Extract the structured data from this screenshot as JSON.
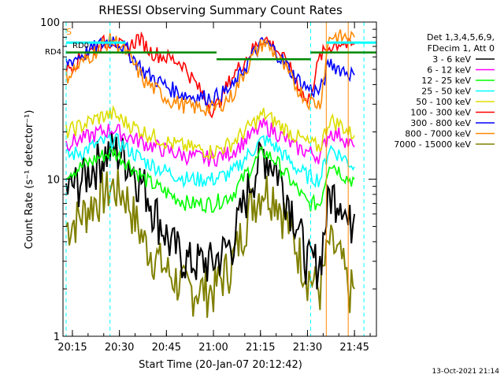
{
  "chart_data": {
    "type": "line",
    "title": "RHESSI Observing Summary Count Rates",
    "xlabel": "Start Time (20-Jan-07 20:12:42)",
    "ylabel": "Count Rate (s⁻¹ detector⁻¹)",
    "y_scale": "log",
    "ylim": [
      1,
      100
    ],
    "xlim": [
      "20:12",
      "21:52"
    ],
    "x_ticks": [
      "20:15",
      "20:30",
      "20:45",
      "21:00",
      "21:15",
      "21:30",
      "21:45"
    ],
    "y_ticks": [
      "1",
      "10",
      "100"
    ],
    "legend_header": [
      "Det 1,3,4,5,6,9,",
      "FDecim 1, Att 0"
    ],
    "legend_position": "right",
    "timestamp": "13-Oct-2021 21:14",
    "markers": [
      "S",
      "RD0",
      "RD4"
    ],
    "series": [
      {
        "name": "3 - 6 keV",
        "color": "#000000",
        "x": [
          "20:13",
          "20:18",
          "20:24",
          "20:28",
          "20:32",
          "20:38",
          "20:46",
          "20:52",
          "21:00",
          "21:06",
          "21:12",
          "21:16",
          "21:20",
          "21:26",
          "21:30",
          "21:34",
          "21:37",
          "21:41",
          "21:43",
          "21:45"
        ],
        "y": [
          8.5,
          10,
          14,
          15.5,
          14,
          9,
          4,
          3,
          3,
          4,
          10,
          15,
          12,
          6,
          3,
          3,
          8,
          8,
          5,
          6
        ]
      },
      {
        "name": "6 - 12 keV",
        "color": "#ff00ff",
        "x": [
          "20:13",
          "20:18",
          "20:24",
          "20:28",
          "20:32",
          "20:38",
          "20:46",
          "20:52",
          "21:00",
          "21:06",
          "21:12",
          "21:16",
          "21:20",
          "21:26",
          "21:30",
          "21:34",
          "21:37",
          "21:41",
          "21:43",
          "21:45"
        ],
        "y": [
          17,
          18,
          20,
          21,
          19,
          17,
          15,
          14,
          13.5,
          15,
          19,
          22,
          20,
          16,
          15,
          14,
          20,
          19,
          17,
          16
        ]
      },
      {
        "name": "12 - 25 keV",
        "color": "#00ff00",
        "x": [
          "20:13",
          "20:18",
          "20:24",
          "20:28",
          "20:32",
          "20:38",
          "20:46",
          "20:52",
          "21:00",
          "21:06",
          "21:12",
          "21:16",
          "21:20",
          "21:26",
          "21:30",
          "21:34",
          "21:37",
          "21:41",
          "21:43",
          "21:45"
        ],
        "y": [
          11,
          12,
          14,
          15,
          13,
          10,
          8,
          7,
          7,
          8,
          12,
          15,
          13,
          9,
          7,
          7,
          13,
          11,
          10,
          10
        ]
      },
      {
        "name": "25 - 50 keV",
        "color": "#00ffff",
        "x": [
          "20:13",
          "20:18",
          "20:24",
          "20:28",
          "20:32",
          "20:38",
          "20:46",
          "20:52",
          "21:00",
          "21:06",
          "21:12",
          "21:16",
          "21:20",
          "21:26",
          "21:30",
          "21:34",
          "21:37",
          "21:41",
          "21:43",
          "21:45"
        ],
        "y": [
          14,
          15,
          17,
          18,
          16,
          13,
          11,
          10,
          10,
          11,
          15,
          18,
          16,
          12,
          10.5,
          10,
          16,
          14,
          13,
          12
        ]
      },
      {
        "name": "50 - 100 keV",
        "color": "#dddd00",
        "x": [
          "20:13",
          "20:18",
          "20:24",
          "20:28",
          "20:32",
          "20:38",
          "20:46",
          "20:52",
          "21:00",
          "21:06",
          "21:12",
          "21:16",
          "21:20",
          "21:26",
          "21:30",
          "21:34",
          "21:37",
          "21:41",
          "21:43",
          "21:45"
        ],
        "y": [
          20,
          22,
          25,
          26,
          23,
          20,
          17,
          16,
          15,
          17,
          22,
          26,
          23,
          19,
          17,
          16,
          24,
          22,
          20,
          19
        ]
      },
      {
        "name": "100 - 300 keV",
        "color": "#ff0000",
        "x": [
          "20:13",
          "20:18",
          "20:24",
          "20:28",
          "20:32",
          "20:36",
          "20:40",
          "20:50",
          "21:00",
          "21:06",
          "21:12",
          "21:16",
          "21:20",
          "21:26",
          "21:30",
          "21:34",
          "21:37",
          "21:41",
          "21:43",
          "21:45"
        ],
        "y": [
          50,
          60,
          72,
          78,
          65,
          80,
          65,
          55,
          27,
          45,
          65,
          80,
          68,
          45,
          30,
          60,
          70,
          75,
          70,
          72
        ]
      },
      {
        "name": "300 - 800 keV",
        "color": "#0000ff",
        "x": [
          "20:13",
          "20:18",
          "20:24",
          "20:28",
          "20:32",
          "20:38",
          "20:46",
          "20:52",
          "21:00",
          "21:06",
          "21:12",
          "21:16",
          "21:20",
          "21:26",
          "21:30",
          "21:34",
          "21:37",
          "21:41",
          "21:43",
          "21:45"
        ],
        "y": [
          55,
          62,
          72,
          78,
          68,
          48,
          38,
          34,
          33,
          38,
          60,
          75,
          65,
          45,
          38,
          36,
          55,
          50,
          48,
          46
        ]
      },
      {
        "name": "800 - 7000 keV",
        "color": "#ff8800",
        "x": [
          "20:13",
          "20:18",
          "20:24",
          "20:28",
          "20:32",
          "20:38",
          "20:46",
          "20:52",
          "21:00",
          "21:06",
          "21:12",
          "21:16",
          "21:20",
          "21:26",
          "21:30",
          "21:34",
          "21:37",
          "21:41",
          "21:43",
          "21:45"
        ],
        "y": [
          45,
          55,
          70,
          78,
          65,
          42,
          32,
          29,
          28,
          34,
          58,
          75,
          62,
          40,
          32,
          30,
          82,
          80,
          80,
          80
        ]
      },
      {
        "name": "7000 - 15000 keV",
        "color": "#808000",
        "x": [
          "20:13",
          "20:18",
          "20:24",
          "20:28",
          "20:32",
          "20:38",
          "20:46",
          "20:52",
          "21:00",
          "21:06",
          "21:12",
          "21:16",
          "21:20",
          "21:26",
          "21:30",
          "21:34",
          "21:37",
          "21:41",
          "21:43",
          "21:45"
        ],
        "y": [
          5,
          6,
          8,
          9,
          8,
          4,
          2.5,
          2,
          2,
          3,
          7,
          9,
          8,
          4,
          2.5,
          2,
          4,
          3,
          2,
          2
        ]
      }
    ]
  }
}
